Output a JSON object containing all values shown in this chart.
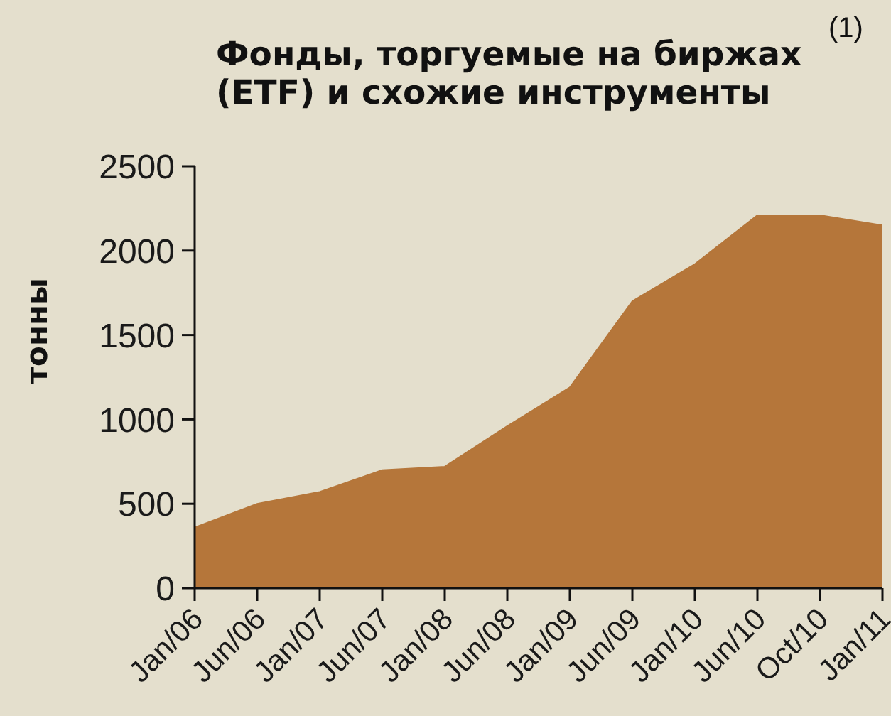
{
  "chart_data": {
    "type": "area",
    "title": "Фонды, торгуемые на биржах (ETF) и схожие инструменты",
    "annotations": [
      "(1)"
    ],
    "ylabel": "тонны",
    "categories": [
      "Jan/06",
      "Jun/06",
      "Jan/07",
      "Jun/07",
      "Jan/08",
      "Jun/08",
      "Jan/09",
      "Jun/09",
      "Jan/10",
      "Jun/10",
      "Oct/10",
      "Jan/11"
    ],
    "values": [
      360,
      500,
      570,
      700,
      720,
      960,
      1190,
      1700,
      1920,
      2210,
      2210,
      2150
    ],
    "color": "#b5763a",
    "ylim": [
      0,
      2500
    ],
    "yticks": [
      0,
      500,
      1000,
      1500,
      2000,
      2500
    ]
  }
}
